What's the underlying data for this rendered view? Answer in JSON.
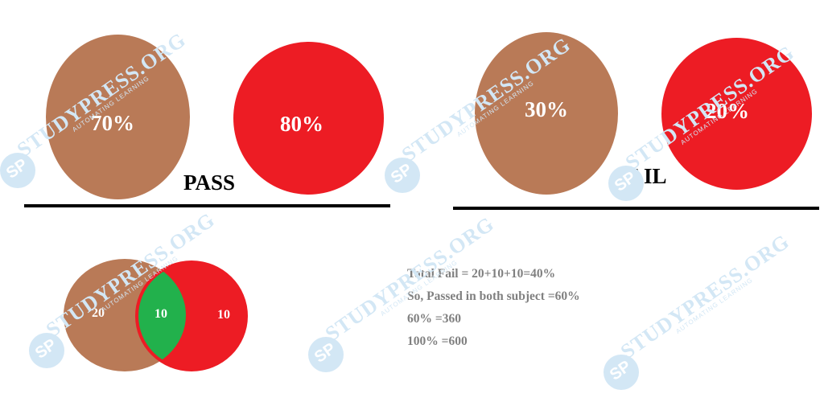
{
  "pass": {
    "label": "PASS",
    "left_circle": {
      "value": "70%",
      "color": "#b97a57"
    },
    "right_circle": {
      "value": "80%",
      "color": "#ed1c24"
    }
  },
  "fail": {
    "label": "FAIL",
    "left_circle": {
      "value": "30%",
      "color": "#b97a57"
    },
    "right_circle": {
      "value": "20%",
      "color": "#ed1c24"
    }
  },
  "venn": {
    "left_only": "20",
    "both": "10",
    "right_only": "10",
    "colors": {
      "left": "#b97a57",
      "right": "#ed1c24",
      "overlap": "#22b14c"
    }
  },
  "calculation": {
    "lines": [
      "Total Fail = 20+10+10=40%",
      "So, Passed in both subject =60%",
      "60% =360",
      "100% =600"
    ]
  },
  "watermark": {
    "text": "STUDYPRESS.ORG",
    "tagline": "AUTOMATING LEARNING",
    "logo": "SP"
  }
}
